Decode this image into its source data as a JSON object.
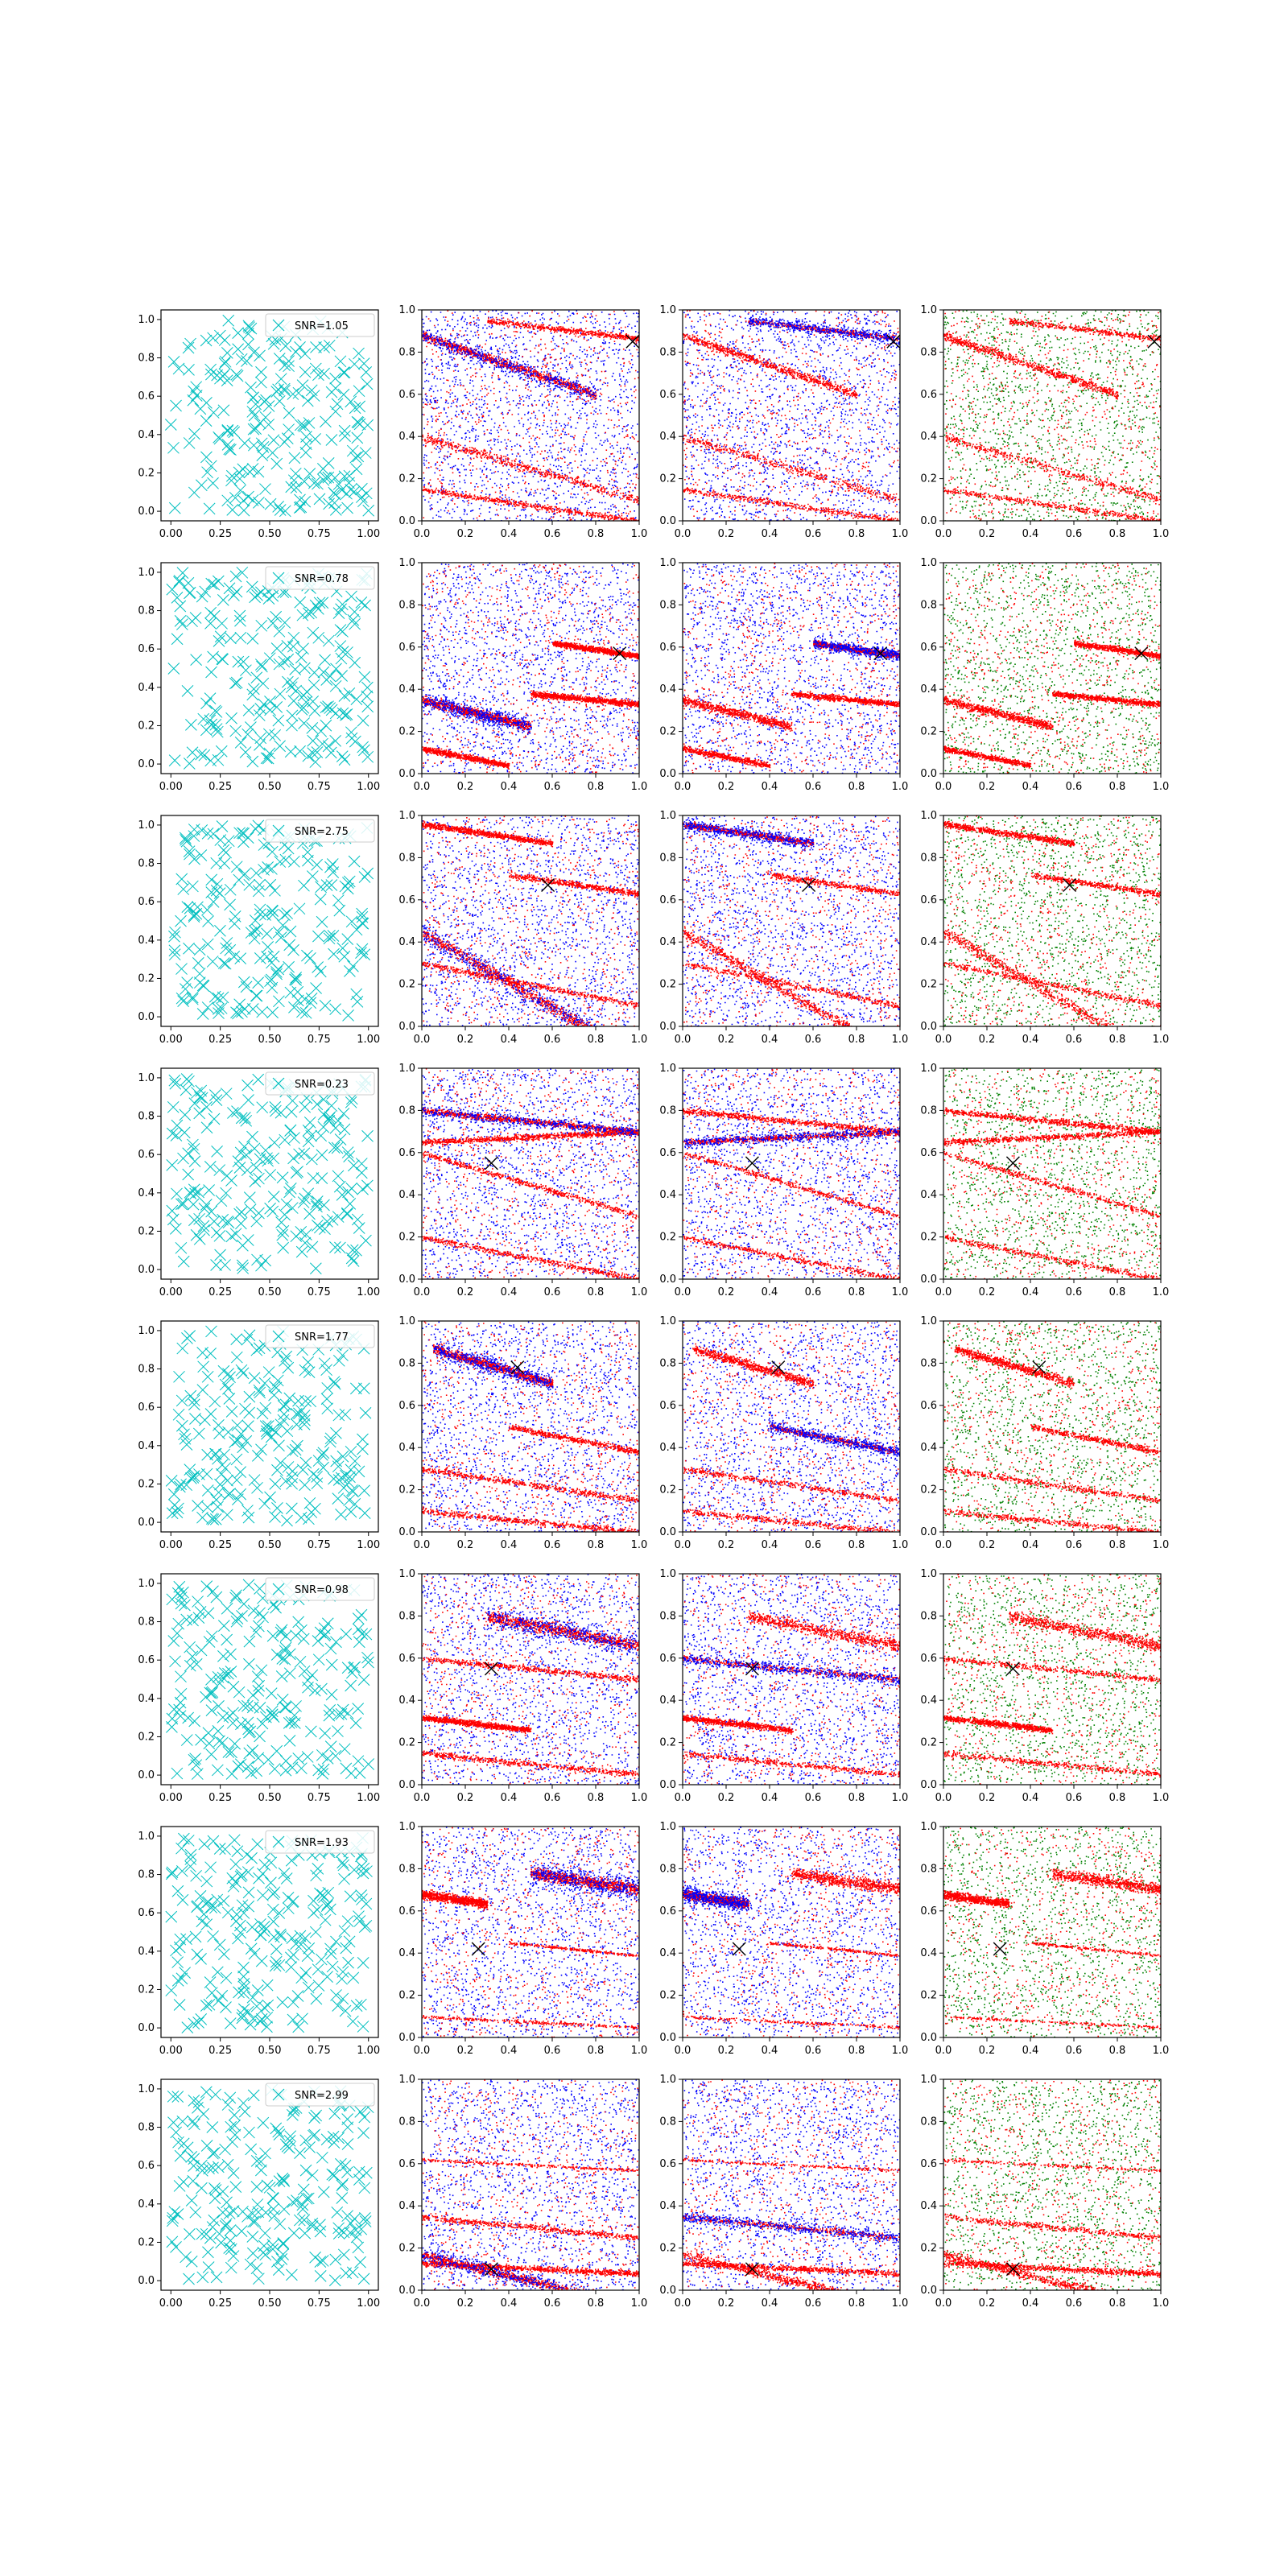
{
  "figure": {
    "background": "#ffffff"
  },
  "colors": {
    "cyan_marker": "#00bfbf",
    "blue": "#0000ff",
    "red": "#ff0000",
    "green": "#008000",
    "black": "#000000"
  },
  "chart_data": {
    "type": "scatter",
    "layout": {
      "rows": 8,
      "columns": 4
    },
    "columns": [
      {
        "role": "x-markers",
        "color": "cyan",
        "marker": "x",
        "xlim": [
          -0.05,
          1.05
        ],
        "ylim": [
          -0.05,
          1.05
        ],
        "xticks": [
          "0.00",
          "0.25",
          "0.50",
          "0.75",
          "1.00"
        ],
        "yticks": [
          "0.0",
          "0.2",
          "0.4",
          "0.6",
          "0.8",
          "1.0"
        ]
      },
      {
        "role": "red-blue points",
        "xlim": [
          0,
          1
        ],
        "ylim": [
          0,
          1
        ],
        "xticks": [
          "0.0",
          "0.2",
          "0.4",
          "0.6",
          "0.8",
          "1.0"
        ],
        "yticks": [
          "0.0",
          "0.2",
          "0.4",
          "0.6",
          "0.8",
          "1.0"
        ]
      },
      {
        "role": "red-blue points",
        "xlim": [
          0,
          1
        ],
        "ylim": [
          0,
          1
        ],
        "xticks": [
          "0.0",
          "0.2",
          "0.4",
          "0.6",
          "0.8",
          "1.0"
        ],
        "yticks": [
          "0.0",
          "0.2",
          "0.4",
          "0.6",
          "0.8",
          "1.0"
        ]
      },
      {
        "role": "red-green points",
        "xlim": [
          0,
          1
        ],
        "ylim": [
          0,
          1
        ],
        "xticks": [
          "0.0",
          "0.2",
          "0.4",
          "0.6",
          "0.8",
          "1.0"
        ],
        "yticks": [
          "0.0",
          "0.2",
          "0.4",
          "0.6",
          "0.8",
          "1.0"
        ]
      }
    ],
    "legend": {
      "placement": "upper right",
      "marker": "x"
    },
    "rows": [
      {
        "snr": "SNR=1.05",
        "marker_point": [
          0.97,
          0.85
        ]
      },
      {
        "snr": "SNR=0.78",
        "marker_point": [
          0.91,
          0.57
        ]
      },
      {
        "snr": "SNR=2.75",
        "marker_point": [
          0.58,
          0.67
        ]
      },
      {
        "snr": "SNR=0.23",
        "marker_point": [
          0.32,
          0.55
        ]
      },
      {
        "snr": "SNR=1.77",
        "marker_point": [
          0.44,
          0.78
        ]
      },
      {
        "snr": "SNR=0.98",
        "marker_point": [
          0.32,
          0.55
        ]
      },
      {
        "snr": "SNR=1.93",
        "marker_point": [
          0.26,
          0.42
        ]
      },
      {
        "snr": "SNR=2.99",
        "marker_point": [
          0.32,
          0.1
        ]
      }
    ]
  }
}
